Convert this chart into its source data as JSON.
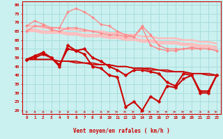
{
  "x": [
    0,
    1,
    2,
    3,
    4,
    5,
    6,
    7,
    8,
    9,
    10,
    11,
    12,
    13,
    14,
    15,
    16,
    17,
    18,
    19,
    20,
    21,
    22,
    23
  ],
  "background_color": "#caf0f0",
  "grid_color": "#aadddd",
  "xlabel": "Vent moyen/en rafales ( km/h )",
  "xlabel_color": "#cc0000",
  "tick_color": "#cc0000",
  "ylim": [
    18,
    82
  ],
  "yticks": [
    20,
    25,
    30,
    35,
    40,
    45,
    50,
    55,
    60,
    65,
    70,
    75,
    80
  ],
  "series": [
    {
      "y": [
        68,
        68,
        67,
        67,
        67,
        66,
        66,
        65,
        65,
        65,
        64,
        64,
        63,
        63,
        62,
        62,
        61,
        61,
        61,
        60,
        60,
        59,
        59,
        58
      ],
      "color": "#ffbbbb",
      "lw": 1.8,
      "marker": null,
      "zorder": 2
    },
    {
      "y": [
        66,
        66,
        65,
        65,
        65,
        64,
        64,
        63,
        63,
        63,
        62,
        62,
        61,
        61,
        60,
        60,
        59,
        59,
        59,
        58,
        58,
        57,
        57,
        56
      ],
      "color": "#ffbbbb",
      "lw": 1.8,
      "marker": null,
      "zorder": 2
    },
    {
      "y": [
        65,
        65,
        64,
        64,
        64,
        63,
        63,
        62,
        62,
        62,
        61,
        61,
        60,
        60,
        59,
        59,
        58,
        58,
        58,
        57,
        57,
        56,
        56,
        55
      ],
      "color": "#ffbbbb",
      "lw": 1.5,
      "marker": null,
      "zorder": 2
    },
    {
      "y": [
        68,
        71,
        69,
        67,
        67,
        76,
        78,
        76,
        73,
        69,
        68,
        65,
        63,
        62,
        67,
        57,
        55,
        54,
        54,
        55,
        56,
        55,
        55,
        54
      ],
      "color": "#ff8888",
      "lw": 1.0,
      "marker": "D",
      "markersize": 2.0,
      "zorder": 3
    },
    {
      "y": [
        65,
        68,
        68,
        66,
        65,
        67,
        67,
        66,
        65,
        64,
        63,
        63,
        62,
        62,
        68,
        63,
        57,
        55,
        55,
        55,
        55,
        55,
        55,
        54
      ],
      "color": "#ff8888",
      "lw": 1.0,
      "marker": "D",
      "markersize": 2.0,
      "zorder": 3
    },
    {
      "y": [
        49,
        49,
        49,
        49,
        48,
        48,
        47,
        47,
        46,
        46,
        46,
        45,
        45,
        44,
        44,
        43,
        43,
        42,
        42,
        42,
        41,
        41,
        40,
        40
      ],
      "color": "#cc0000",
      "lw": 1.2,
      "marker": null,
      "zorder": 4
    },
    {
      "y": [
        49,
        49,
        49,
        49,
        48,
        48,
        48,
        47,
        47,
        46,
        46,
        45,
        45,
        44,
        44,
        44,
        43,
        43,
        42,
        42,
        41,
        41,
        41,
        40
      ],
      "color": "#cc0000",
      "lw": 1.2,
      "marker": null,
      "zorder": 4
    },
    {
      "y": [
        49,
        50,
        52,
        50,
        46,
        55,
        54,
        55,
        50,
        48,
        45,
        43,
        40,
        43,
        43,
        42,
        41,
        36,
        34,
        41,
        40,
        31,
        31,
        40
      ],
      "color": "#cc0000",
      "lw": 1.5,
      "marker": "D",
      "markersize": 2.5,
      "zorder": 5
    },
    {
      "y": [
        49,
        51,
        53,
        50,
        45,
        57,
        54,
        52,
        45,
        44,
        40,
        39,
        22,
        25,
        20,
        28,
        25,
        34,
        33,
        38,
        40,
        30,
        30,
        40
      ],
      "color": "#cc0000",
      "lw": 1.5,
      "marker": "D",
      "markersize": 2.5,
      "zorder": 5
    }
  ],
  "wind_arrows": {
    "angles_deg": [
      -45,
      -45,
      -45,
      -45,
      -45,
      -45,
      -45,
      -45,
      -45,
      -45,
      0,
      0,
      0,
      0,
      0,
      0,
      0,
      0,
      0,
      0,
      0,
      -45,
      -45,
      0
    ],
    "color": "#cc0000"
  }
}
